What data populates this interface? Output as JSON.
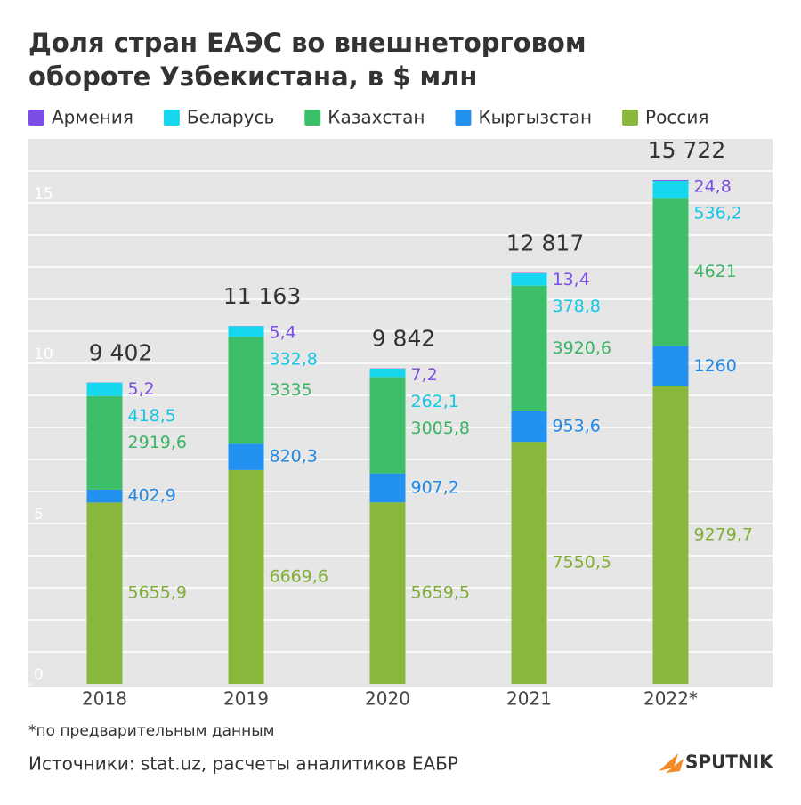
{
  "chart_data": {
    "type": "stacked_bar",
    "title": "Доля стран ЕАЭС во внешнеторговом обороте Узбекистана, в $ млн",
    "categories": [
      "2018",
      "2019",
      "2020",
      "2021",
      "2022*"
    ],
    "series": [
      {
        "name": "Россия",
        "color": "#8ab83c",
        "label_color": "#7fae33",
        "values": [
          5655.9,
          6669.6,
          5659.5,
          7550.5,
          9279.7
        ],
        "value_labels": [
          "5655,9",
          "6669,6",
          "5659,5",
          "7550,5",
          "9279,7"
        ]
      },
      {
        "name": "Кыргызстан",
        "color": "#2391f0",
        "label_color": "#2288e6",
        "values": [
          402.9,
          820.3,
          907.2,
          953.6,
          1260
        ],
        "value_labels": [
          "402,9",
          "820,3",
          "907,2",
          "953,6",
          "1260"
        ]
      },
      {
        "name": "Казахстан",
        "color": "#3dbf6a",
        "label_color": "#3bb564",
        "values": [
          2919.6,
          3335,
          3005.8,
          3920.6,
          4621
        ],
        "value_labels": [
          "2919,6",
          "3335",
          "3005,8",
          "3920,6",
          "4621"
        ]
      },
      {
        "name": "Беларусь",
        "color": "#17d7ef",
        "label_color": "#12c8e6",
        "values": [
          418.5,
          332.8,
          262.1,
          378.8,
          536.2
        ],
        "value_labels": [
          "418,5",
          "332,8",
          "262,1",
          "378,8",
          "536,2"
        ]
      },
      {
        "name": "Армения",
        "color": "#7b4fe6",
        "label_color": "#7b4fe6",
        "values": [
          5.2,
          5.4,
          7.2,
          13.4,
          24.8
        ],
        "value_labels": [
          "5,2",
          "5,4",
          "7,2",
          "13,4",
          "24,8"
        ]
      }
    ],
    "legend_order": [
      4,
      3,
      2,
      1,
      0
    ],
    "totals": {
      "values": [
        9402,
        11163,
        9842,
        12817,
        15722
      ],
      "value_labels": [
        "9 402",
        "11 163",
        "9 842",
        "12 817",
        "15 722"
      ]
    },
    "ylim": [
      0,
      17000
    ],
    "yticks": [
      {
        "value": 0,
        "label": "0"
      },
      {
        "value": 5000,
        "label": "5"
      },
      {
        "value": 10000,
        "label": "10"
      },
      {
        "value": 15000,
        "label": "15"
      }
    ],
    "minor_yticks": [
      1000,
      2000,
      3000,
      4000,
      5000,
      6000,
      7000,
      8000,
      9000,
      10000,
      11000,
      12000,
      13000,
      14000,
      15000,
      16000
    ],
    "grid": true,
    "note": "*по предварительным данным",
    "source": "Источники: stat.uz, расчеты аналитиков ЕАБР",
    "logo": "SPUTNIK"
  }
}
